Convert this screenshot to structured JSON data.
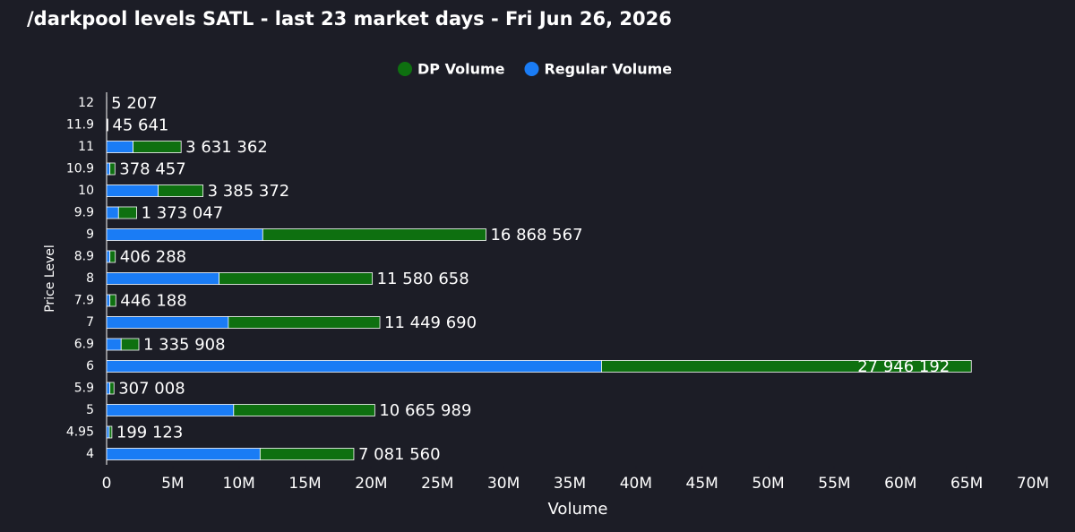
{
  "chart_data": {
    "type": "stacked-barh",
    "title": "/darkpool levels SATL - last 23 market days - Fri Jun 26, 2026",
    "ylabel": "Price Level",
    "xlabel": "Volume",
    "categories": [
      "12",
      "11.9",
      "11",
      "10.9",
      "10",
      "9.9",
      "9",
      "8.9",
      "8",
      "7.9",
      "7",
      "6.9",
      "6",
      "5.9",
      "5",
      "4.95",
      "4"
    ],
    "series": [
      {
        "name": "Regular Volume",
        "color": "#1a7cf5",
        "values": [
          5000,
          50000,
          2000000,
          250000,
          3900000,
          900000,
          11800000,
          250000,
          8500000,
          250000,
          9200000,
          1100000,
          37400000,
          250000,
          9600000,
          200000,
          11600000
        ]
      },
      {
        "name": "DP Volume",
        "color": "#0e7010",
        "values": [
          5207,
          45641,
          3631362,
          378457,
          3385372,
          1373047,
          16868567,
          406288,
          11580658,
          446188,
          11449690,
          1335908,
          27946192,
          307008,
          10665989,
          199123,
          7081560
        ],
        "value_labels": [
          "5 207",
          "45 641",
          "3 631 362",
          "378 457",
          "3 385 372",
          "1 373 047",
          "16 868 567",
          "406 288",
          "11 580 658",
          "446 188",
          "11 449 690",
          "1 335 908",
          "27 946 192",
          "307 008",
          "10 665 989",
          "199 123",
          "7 081 560"
        ]
      }
    ],
    "legend_order": [
      1,
      0
    ],
    "xlim": [
      0,
      70000000
    ],
    "xticks": [
      0,
      {
        "value": 5000000,
        "label": "5M"
      },
      {
        "value": 10000000,
        "label": "10M"
      },
      {
        "value": 15000000,
        "label": "15M"
      },
      {
        "value": 20000000,
        "label": "20M"
      },
      {
        "value": 25000000,
        "label": "25M"
      },
      {
        "value": 30000000,
        "label": "30M"
      },
      {
        "value": 35000000,
        "label": "35M"
      },
      {
        "value": 40000000,
        "label": "40M"
      },
      {
        "value": 45000000,
        "label": "45M"
      },
      {
        "value": 50000000,
        "label": "50M"
      },
      {
        "value": 55000000,
        "label": "55M"
      },
      {
        "value": 60000000,
        "label": "60M"
      },
      {
        "value": 65000000,
        "label": "65M"
      },
      {
        "value": 70000000,
        "label": "70M"
      }
    ]
  }
}
